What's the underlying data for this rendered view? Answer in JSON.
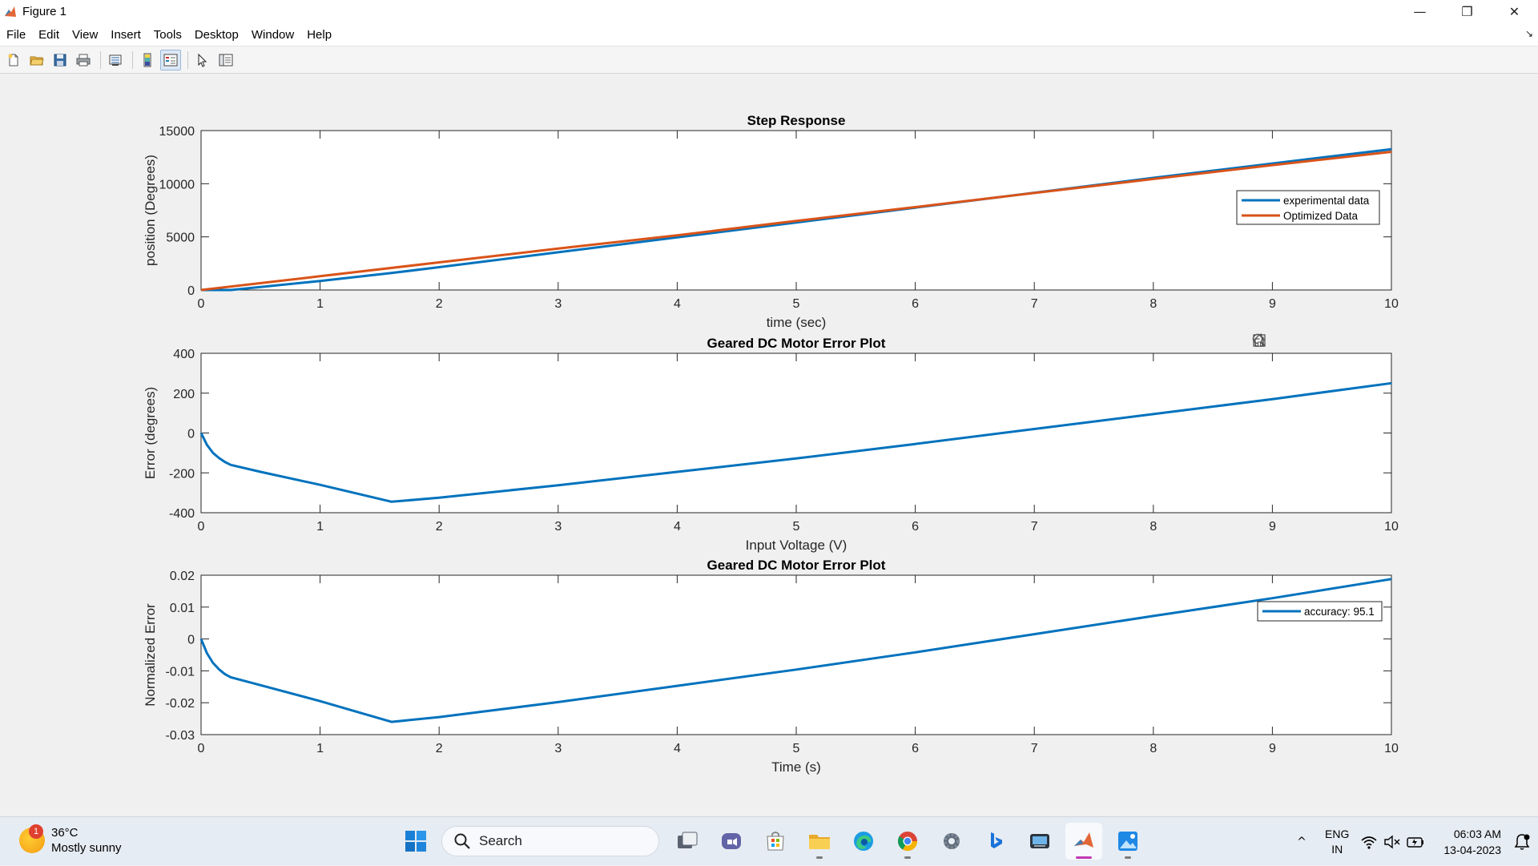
{
  "window": {
    "title": "Figure 1",
    "minimize_glyph": "—",
    "maximize_glyph": "❐",
    "close_glyph": "✕"
  },
  "menu": {
    "items": [
      "File",
      "Edit",
      "View",
      "Insert",
      "Tools",
      "Desktop",
      "Window",
      "Help"
    ],
    "dock_glyph": "↘"
  },
  "toolbar": {
    "icons": [
      "new-figure-icon",
      "open-file-icon",
      "save-icon",
      "print-icon",
      "link-plot-icon",
      "colorbar-icon",
      "legend-icon",
      "edit-plot-icon",
      "property-inspector-icon"
    ]
  },
  "axes_toolbar": {
    "icons": [
      "export-icon",
      "brush-icon",
      "data-tips-icon",
      "pan-icon",
      "zoom-in-icon",
      "zoom-out-icon",
      "home-icon"
    ]
  },
  "chart_data": [
    {
      "type": "line",
      "title": "Step Response",
      "xlabel": "time (sec)",
      "ylabel": "position (Degrees)",
      "xlim": [
        0,
        10
      ],
      "ylim": [
        0,
        15000
      ],
      "xticks": [
        "0",
        "1",
        "2",
        "3",
        "4",
        "5",
        "6",
        "7",
        "8",
        "9",
        "10"
      ],
      "yticks": [
        "0",
        "5000",
        "10000",
        "15000"
      ],
      "legend_position": "right",
      "series": [
        {
          "name": "experimental data",
          "color": "#0072bd",
          "x": [
            0,
            0.25,
            1,
            1.6,
            2,
            3,
            4,
            5,
            6,
            7,
            8,
            9,
            10
          ],
          "y": [
            0,
            0,
            850,
            1600,
            2150,
            3550,
            4950,
            6350,
            7750,
            9150,
            10550,
            11900,
            13250
          ]
        },
        {
          "name": "Optimized Data",
          "color": "#d95319",
          "x": [
            0,
            1,
            2,
            3,
            4,
            5,
            6,
            7,
            8,
            9,
            10
          ],
          "y": [
            0,
            1300,
            2600,
            3900,
            5150,
            6500,
            7800,
            9130,
            10450,
            11750,
            13000
          ]
        }
      ]
    },
    {
      "type": "line",
      "title": "Geared DC Motor Error Plot",
      "xlabel": "Input Voltage (V)",
      "ylabel": "Error (degrees)",
      "xlim": [
        0,
        10
      ],
      "ylim": [
        -400,
        400
      ],
      "xticks": [
        "0",
        "1",
        "2",
        "3",
        "4",
        "5",
        "6",
        "7",
        "8",
        "9",
        "10"
      ],
      "yticks": [
        "-400",
        "-200",
        "0",
        "200",
        "400"
      ],
      "series": [
        {
          "color": "#0072bd",
          "x": [
            0,
            0.05,
            0.1,
            0.15,
            0.2,
            0.25,
            0.5,
            1,
            1.6,
            2,
            3,
            4,
            5,
            6,
            7,
            8,
            9,
            10
          ],
          "y": [
            0,
            -60,
            -100,
            -125,
            -145,
            -160,
            -195,
            -260,
            -345,
            -325,
            -262,
            -195,
            -128,
            -55,
            20,
            95,
            170,
            250
          ]
        }
      ]
    },
    {
      "type": "line",
      "title": "Geared DC Motor Error Plot",
      "xlabel": "Time (s)",
      "ylabel": "Normalized Error",
      "xlim": [
        0,
        10
      ],
      "ylim": [
        -0.03,
        0.02
      ],
      "xticks": [
        "0",
        "1",
        "2",
        "3",
        "4",
        "5",
        "6",
        "7",
        "8",
        "9",
        "10"
      ],
      "yticks": [
        "-0.03",
        "-0.02",
        "-0.01",
        "0",
        "0.01",
        "0.02"
      ],
      "legend_position": "right",
      "series": [
        {
          "name": "accuracy: 95.1",
          "color": "#0072bd",
          "x": [
            0,
            0.05,
            0.1,
            0.15,
            0.2,
            0.25,
            0.5,
            1,
            1.6,
            2,
            3,
            4,
            5,
            6,
            7,
            8,
            9,
            10
          ],
          "y": [
            0,
            -0.0045,
            -0.0075,
            -0.0095,
            -0.011,
            -0.012,
            -0.0145,
            -0.0195,
            -0.026,
            -0.0245,
            -0.0198,
            -0.0147,
            -0.0096,
            -0.0042,
            0.0015,
            0.0072,
            0.0128,
            0.0188
          ]
        }
      ]
    }
  ],
  "taskbar": {
    "weather": {
      "badge": "1",
      "temp": "36°C",
      "condition": "Mostly sunny"
    },
    "search_label": "Search",
    "lang_line1": "ENG",
    "lang_line2": "IN",
    "time": "06:03 AM",
    "date": "13-04-2023",
    "chevron": "^"
  }
}
